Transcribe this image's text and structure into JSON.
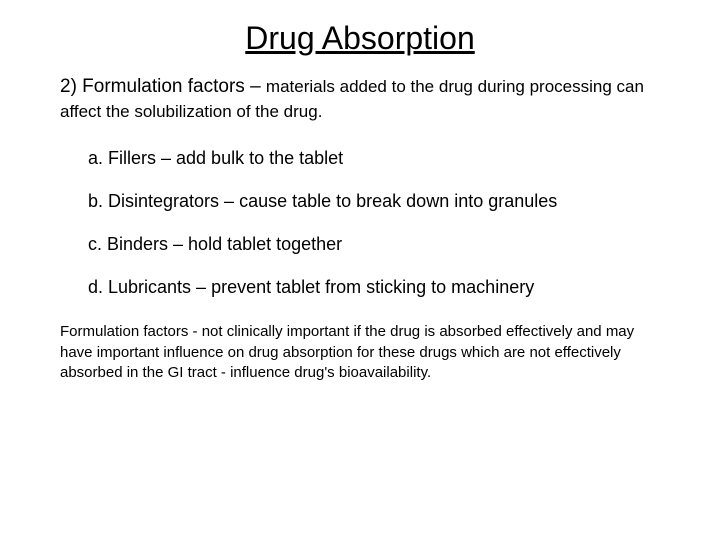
{
  "title": "Drug Absorption",
  "subtitle_lead": "2) Formulation factors – ",
  "subtitle_rest": "materials added to the drug during processing can affect the solubilization of the drug.",
  "items": {
    "a": "a. Fillers – add bulk to the tablet",
    "b": "b. Disintegrators – cause table to break down into granules",
    "c": "c. Binders – hold tablet together",
    "d": "d. Lubricants – prevent tablet from sticking to machinery"
  },
  "footer": "Formulation factors - not clinically important if the drug is absorbed effectively and may have important influence on drug absorption for these drugs which are not effectively absorbed in the GI tract - influence drug's bioavailability.",
  "style": {
    "background_color": "#ffffff",
    "text_color": "#000000",
    "title_fontsize": 32,
    "subtitle_lead_fontsize": 19,
    "subtitle_rest_fontsize": 17,
    "item_fontsize": 18,
    "footer_fontsize": 15,
    "font_family": "Arial"
  }
}
